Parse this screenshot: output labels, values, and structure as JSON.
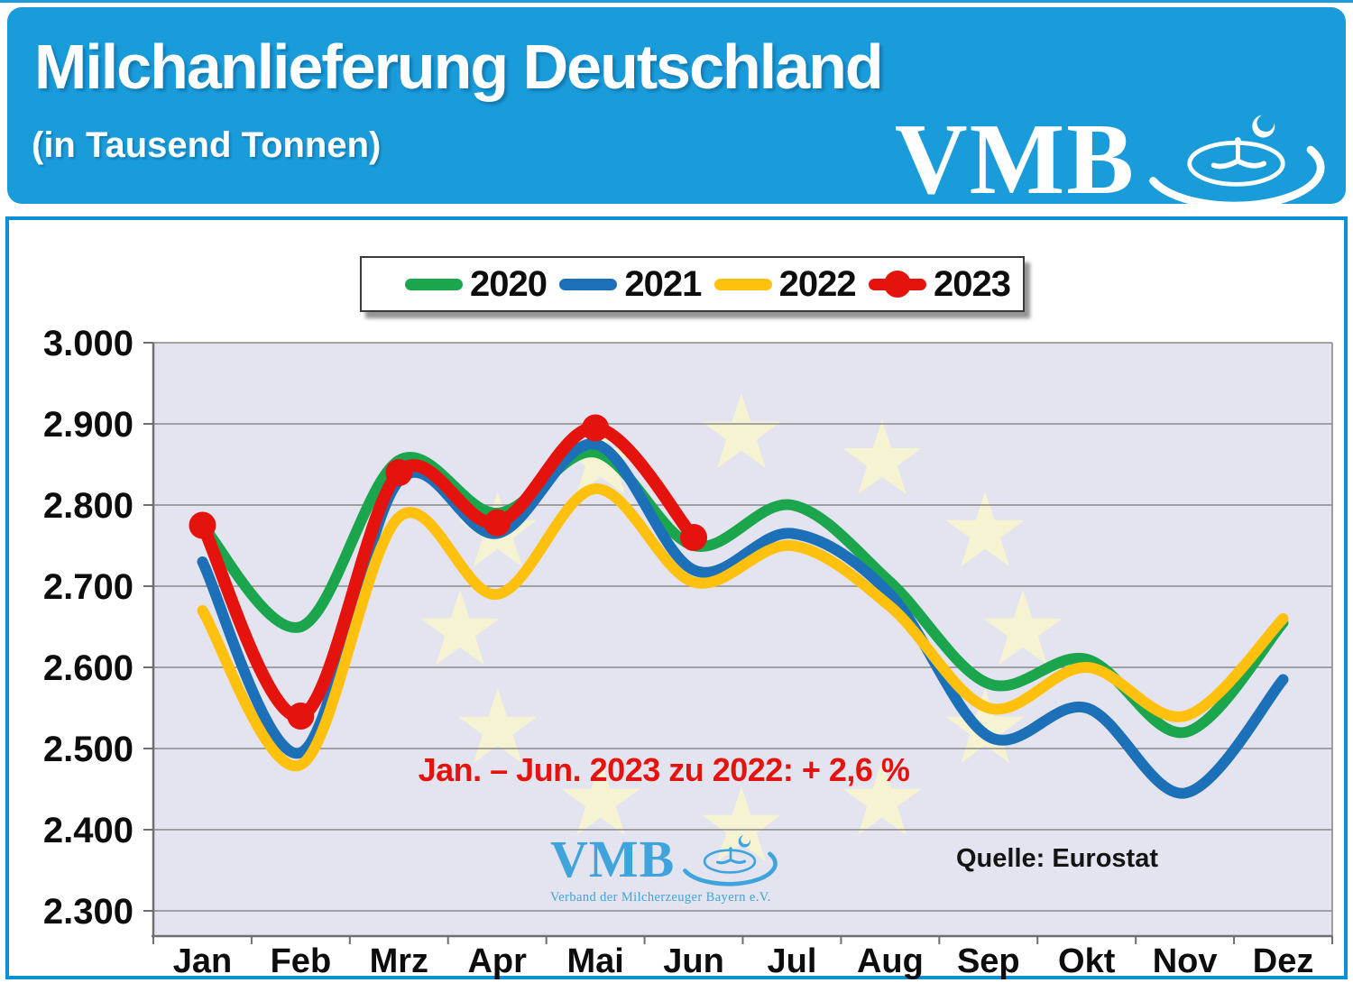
{
  "page": {
    "title": "Milchanlieferung Deutschland",
    "subtitle": "(in Tausend Tonnen)",
    "logo_text": "VMB"
  },
  "watermark": {
    "logo_text": "VMB",
    "caption": "Verband der Milcherzeuger Bayern e.V."
  },
  "colors": {
    "header_bg": "#1A9CDB",
    "panel_border": "#0D8FD4",
    "plot_bg": "#E3E4EF",
    "eu_star": "#F6F3D3",
    "gridline": "#8A8A8A",
    "axis": "#6F6F6F",
    "tick_label": "#0d0d0d",
    "annotation_red": "#E5130E",
    "watermark_blue": "#3FA4DB"
  },
  "chart_data": {
    "type": "line",
    "title": "Milchanlieferung Deutschland",
    "subtitle": "(in Tausend Tonnen)",
    "unit": "Tausend Tonnen",
    "categories": [
      "Jan",
      "Feb",
      "Mrz",
      "Apr",
      "Mai",
      "Jun",
      "Jul",
      "Aug",
      "Sep",
      "Okt",
      "Nov",
      "Dez"
    ],
    "series": [
      {
        "name": "2020",
        "color": "#1BA64E",
        "line_width": 12,
        "markers": false,
        "values": [
          2775,
          2650,
          2855,
          2790,
          2865,
          2750,
          2800,
          2705,
          2580,
          2610,
          2520,
          2655
        ]
      },
      {
        "name": "2021",
        "color": "#1C70B8",
        "line_width": 12,
        "markers": false,
        "values": [
          2730,
          2495,
          2830,
          2765,
          2875,
          2720,
          2765,
          2690,
          2515,
          2550,
          2445,
          2585
        ]
      },
      {
        "name": "2022",
        "color": "#FFC10D",
        "line_width": 12,
        "markers": false,
        "values": [
          2670,
          2480,
          2785,
          2690,
          2820,
          2705,
          2750,
          2675,
          2550,
          2600,
          2540,
          2660
        ]
      },
      {
        "name": "2023",
        "color": "#E5130E",
        "line_width": 14,
        "markers": true,
        "values": [
          2775,
          2540,
          2840,
          2778,
          2895,
          2760,
          null,
          null,
          null,
          null,
          null,
          null
        ]
      }
    ],
    "ylim": [
      2300,
      3000
    ],
    "ytick_step": 100,
    "yticklabels": [
      "3.000",
      "2.900",
      "2.800",
      "2.700",
      "2.600",
      "2.500",
      "2.400",
      "2.300"
    ],
    "grid": true,
    "legend_position": "top",
    "annotation": "Jan. – Jun. 2023 zu 2022: + 2,6 %",
    "source": "Quelle: Eurostat"
  }
}
